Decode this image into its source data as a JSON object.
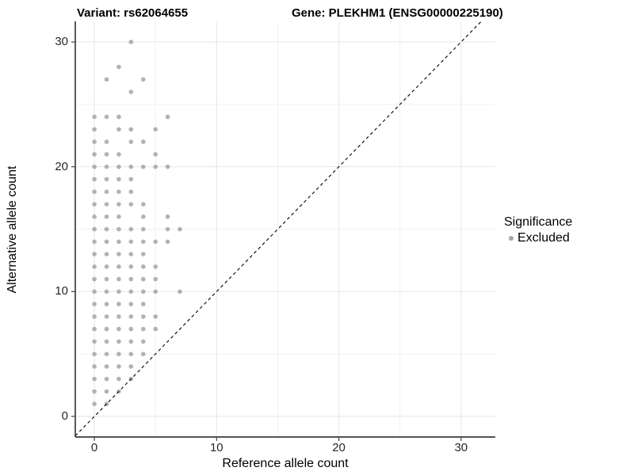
{
  "titles": {
    "variant": "Variant: rs62064655",
    "gene": "Gene: PLEKHM1 (ENSG00000225190)"
  },
  "axes": {
    "x_label": "Reference allele count",
    "y_label": "Alternative allele count"
  },
  "legend": {
    "title": "Significance",
    "items": [
      {
        "label": "Excluded",
        "color": "#a6a6a6"
      }
    ]
  },
  "colors": {
    "point": "#9f9f9f",
    "identity_line": "#141414",
    "grid_major": "#e6e6e6",
    "grid_minor": "#f1f1f1",
    "axis_line": "#3c3c3c",
    "tick_mark": "#333333"
  },
  "chart_data": {
    "type": "scatter",
    "title": "Variant: rs62064655 / Gene: PLEKHM1 (ENSG00000225190)",
    "xlabel": "Reference allele count",
    "ylabel": "Alternative allele count",
    "xlim": [
      -1.56,
      32.8
    ],
    "ylim": [
      -1.65,
      31.65
    ],
    "x_major_ticks": [
      0,
      10,
      20,
      30
    ],
    "y_major_ticks": [
      0,
      10,
      20,
      30
    ],
    "x_minor_ticks": [
      5,
      15,
      25
    ],
    "y_minor_ticks": [
      5,
      15,
      25
    ],
    "grid": true,
    "legend_position": "right",
    "identity_line": {
      "present": true,
      "slope": 1,
      "intercept": 0,
      "style": "dashed"
    },
    "series": [
      {
        "name": "Excluded",
        "points": [
          [
            0,
            1
          ],
          [
            1,
            1
          ],
          [
            0,
            2
          ],
          [
            1,
            2
          ],
          [
            2,
            2
          ],
          [
            0,
            3
          ],
          [
            1,
            3
          ],
          [
            2,
            3
          ],
          [
            3,
            3
          ],
          [
            0,
            4
          ],
          [
            1,
            4
          ],
          [
            2,
            4
          ],
          [
            3,
            4
          ],
          [
            0,
            5
          ],
          [
            1,
            5
          ],
          [
            2,
            5
          ],
          [
            3,
            5
          ],
          [
            4,
            5
          ],
          [
            0,
            6
          ],
          [
            1,
            6
          ],
          [
            2,
            6
          ],
          [
            3,
            6
          ],
          [
            4,
            6
          ],
          [
            0,
            7
          ],
          [
            1,
            7
          ],
          [
            2,
            7
          ],
          [
            3,
            7
          ],
          [
            4,
            7
          ],
          [
            5,
            7
          ],
          [
            0,
            8
          ],
          [
            1,
            8
          ],
          [
            2,
            8
          ],
          [
            3,
            8
          ],
          [
            4,
            8
          ],
          [
            5,
            8
          ],
          [
            0,
            9
          ],
          [
            1,
            9
          ],
          [
            2,
            9
          ],
          [
            3,
            9
          ],
          [
            4,
            9
          ],
          [
            0,
            10
          ],
          [
            1,
            10
          ],
          [
            2,
            10
          ],
          [
            3,
            10
          ],
          [
            4,
            10
          ],
          [
            5,
            10
          ],
          [
            7,
            10
          ],
          [
            0,
            11
          ],
          [
            1,
            11
          ],
          [
            2,
            11
          ],
          [
            3,
            11
          ],
          [
            4,
            11
          ],
          [
            5,
            11
          ],
          [
            0,
            12
          ],
          [
            1,
            12
          ],
          [
            2,
            12
          ],
          [
            3,
            12
          ],
          [
            4,
            12
          ],
          [
            5,
            12
          ],
          [
            0,
            13
          ],
          [
            1,
            13
          ],
          [
            2,
            13
          ],
          [
            3,
            13
          ],
          [
            4,
            13
          ],
          [
            0,
            14
          ],
          [
            1,
            14
          ],
          [
            2,
            14
          ],
          [
            3,
            14
          ],
          [
            4,
            14
          ],
          [
            5,
            14
          ],
          [
            6,
            14
          ],
          [
            0,
            15
          ],
          [
            1,
            15
          ],
          [
            2,
            15
          ],
          [
            3,
            15
          ],
          [
            4,
            15
          ],
          [
            6,
            15
          ],
          [
            7,
            15
          ],
          [
            0,
            16
          ],
          [
            1,
            16
          ],
          [
            2,
            16
          ],
          [
            4,
            16
          ],
          [
            6,
            16
          ],
          [
            0,
            17
          ],
          [
            1,
            17
          ],
          [
            2,
            17
          ],
          [
            3,
            17
          ],
          [
            4,
            17
          ],
          [
            0,
            18
          ],
          [
            1,
            18
          ],
          [
            2,
            18
          ],
          [
            3,
            18
          ],
          [
            0,
            19
          ],
          [
            1,
            19
          ],
          [
            2,
            19
          ],
          [
            3,
            19
          ],
          [
            0,
            20
          ],
          [
            1,
            20
          ],
          [
            2,
            20
          ],
          [
            3,
            20
          ],
          [
            4,
            20
          ],
          [
            5,
            20
          ],
          [
            6,
            20
          ],
          [
            0,
            21
          ],
          [
            1,
            21
          ],
          [
            2,
            21
          ],
          [
            5,
            21
          ],
          [
            0,
            22
          ],
          [
            1,
            22
          ],
          [
            3,
            22
          ],
          [
            4,
            22
          ],
          [
            0,
            23
          ],
          [
            2,
            23
          ],
          [
            3,
            23
          ],
          [
            5,
            23
          ],
          [
            0,
            24
          ],
          [
            1,
            24
          ],
          [
            2,
            24
          ],
          [
            6,
            24
          ],
          [
            3,
            26
          ],
          [
            1,
            27
          ],
          [
            4,
            27
          ],
          [
            2,
            28
          ],
          [
            3,
            30
          ]
        ]
      }
    ]
  }
}
